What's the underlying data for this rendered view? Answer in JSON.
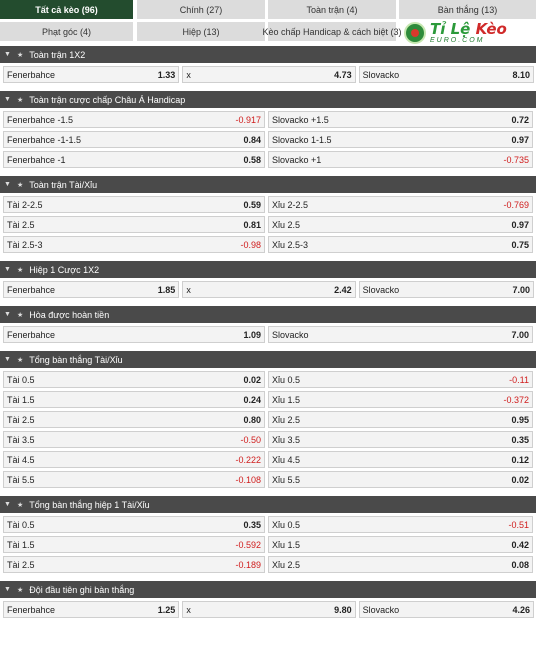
{
  "tabs": [
    "Tất cả kèo (96)",
    "Chính (27)",
    "Toàn trận (4)",
    "Bàn thắng (13)",
    "Phạt góc (4)",
    "Hiệp (13)",
    "Kèo chấp Handicap & cách biệt (3)"
  ],
  "logo": {
    "brand_a": "Tỉ Lệ ",
    "brand_b": "Kèo",
    "site": "EURO.COM"
  },
  "sections": [
    {
      "title": "Toàn trận 1X2",
      "layout": "three",
      "rows": [
        [
          {
            "label": "Fenerbahce",
            "odds": "1.33"
          },
          {
            "label": "x",
            "odds": "4.73"
          },
          {
            "label": "Slovacko",
            "odds": "8.10"
          }
        ]
      ]
    },
    {
      "title": "Toàn trận cược chấp Châu Á Handicap",
      "layout": "two",
      "rows": [
        [
          {
            "label": "Fenerbahce -1.5",
            "odds": "-0.917"
          },
          {
            "label": "Slovacko +1.5",
            "odds": "0.72"
          }
        ],
        [
          {
            "label": "Fenerbahce -1-1.5",
            "odds": "0.84"
          },
          {
            "label": "Slovacko 1-1.5",
            "odds": "0.97"
          }
        ],
        [
          {
            "label": "Fenerbahce -1",
            "odds": "0.58"
          },
          {
            "label": "Slovacko +1",
            "odds": "-0.735"
          }
        ]
      ]
    },
    {
      "title": "Toàn trận Tài/Xỉu",
      "layout": "two",
      "rows": [
        [
          {
            "label": "Tài 2-2.5",
            "odds": "0.59"
          },
          {
            "label": "Xỉu 2-2.5",
            "odds": "-0.769"
          }
        ],
        [
          {
            "label": "Tài 2.5",
            "odds": "0.81"
          },
          {
            "label": "Xỉu 2.5",
            "odds": "0.97"
          }
        ],
        [
          {
            "label": "Tài 2.5-3",
            "odds": "-0.98"
          },
          {
            "label": "Xỉu 2.5-3",
            "odds": "0.75"
          }
        ]
      ]
    },
    {
      "title": "Hiệp 1 Cược 1X2",
      "layout": "three",
      "rows": [
        [
          {
            "label": "Fenerbahce",
            "odds": "1.85"
          },
          {
            "label": "x",
            "odds": "2.42"
          },
          {
            "label": "Slovacko",
            "odds": "7.00"
          }
        ]
      ]
    },
    {
      "title": "Hòa được hoàn tiền",
      "layout": "two",
      "rows": [
        [
          {
            "label": "Fenerbahce",
            "odds": "1.09"
          },
          {
            "label": "Slovacko",
            "odds": "7.00"
          }
        ]
      ]
    },
    {
      "title": "Tổng bàn thắng Tài/Xỉu",
      "layout": "two",
      "rows": [
        [
          {
            "label": "Tài 0.5",
            "odds": "0.02"
          },
          {
            "label": "Xỉu 0.5",
            "odds": "-0.11"
          }
        ],
        [
          {
            "label": "Tài 1.5",
            "odds": "0.24"
          },
          {
            "label": "Xỉu 1.5",
            "odds": "-0.372"
          }
        ],
        [
          {
            "label": "Tài 2.5",
            "odds": "0.80"
          },
          {
            "label": "Xỉu 2.5",
            "odds": "0.95"
          }
        ],
        [
          {
            "label": "Tài 3.5",
            "odds": "-0.50"
          },
          {
            "label": "Xỉu 3.5",
            "odds": "0.35"
          }
        ],
        [
          {
            "label": "Tài 4.5",
            "odds": "-0.222"
          },
          {
            "label": "Xỉu 4.5",
            "odds": "0.12"
          }
        ],
        [
          {
            "label": "Tài 5.5",
            "odds": "-0.108"
          },
          {
            "label": "Xỉu 5.5",
            "odds": "0.02"
          }
        ]
      ]
    },
    {
      "title": "Tổng bàn thắng hiệp 1 Tài/Xỉu",
      "layout": "two",
      "rows": [
        [
          {
            "label": "Tài 0.5",
            "odds": "0.35"
          },
          {
            "label": "Xỉu 0.5",
            "odds": "-0.51"
          }
        ],
        [
          {
            "label": "Tài 1.5",
            "odds": "-0.592"
          },
          {
            "label": "Xỉu 1.5",
            "odds": "0.42"
          }
        ],
        [
          {
            "label": "Tài 2.5",
            "odds": "-0.189"
          },
          {
            "label": "Xỉu 2.5",
            "odds": "0.08"
          }
        ]
      ]
    },
    {
      "title": "Đội đầu tiên ghi bàn thắng",
      "layout": "three",
      "rows": [
        [
          {
            "label": "Fenerbahce",
            "odds": "1.25"
          },
          {
            "label": "x",
            "odds": "9.80"
          },
          {
            "label": "Slovacko",
            "odds": "4.26"
          }
        ]
      ]
    }
  ],
  "colors": {
    "active_tab": "#234c2e",
    "section_header": "#4a4a4a",
    "negative_odds": "#d01d1d"
  },
  "icons": {
    "section": [
      "chevron-down-icon",
      "star-icon"
    ]
  }
}
